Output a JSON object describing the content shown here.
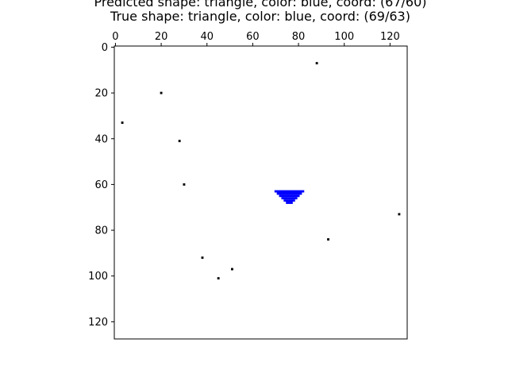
{
  "chart_data": {
    "type": "image",
    "title_lines": [
      "Predicted shape: triangle, color: blue, coord: (67/60)",
      "True shape: triangle, color: blue, coord: (69/63)"
    ],
    "image_size": [
      128,
      128
    ],
    "xlim": [
      0,
      128
    ],
    "ylim": [
      128,
      0
    ],
    "xticks": [
      0,
      20,
      40,
      60,
      80,
      100,
      120
    ],
    "yticks": [
      0,
      20,
      40,
      60,
      80,
      100,
      120
    ],
    "x_axis_position": "top",
    "background_color": "#ffffff",
    "noise_color": "#000000",
    "shape_color": "#0000ff",
    "noise_points": [
      [
        88,
        7
      ],
      [
        20,
        20
      ],
      [
        3,
        33
      ],
      [
        28,
        41
      ],
      [
        30,
        60
      ],
      [
        124,
        73
      ],
      [
        93,
        84
      ],
      [
        38,
        92
      ],
      [
        51,
        97
      ],
      [
        45,
        101
      ]
    ],
    "shape_rows": [
      {
        "y": 63,
        "x0": 70,
        "x1": 82
      },
      {
        "y": 64,
        "x0": 71,
        "x1": 81
      },
      {
        "y": 65,
        "x0": 72,
        "x1": 80
      },
      {
        "y": 66,
        "x0": 73,
        "x1": 79
      },
      {
        "y": 67,
        "x0": 74,
        "x1": 78
      },
      {
        "y": 68,
        "x0": 75,
        "x1": 77
      }
    ]
  }
}
